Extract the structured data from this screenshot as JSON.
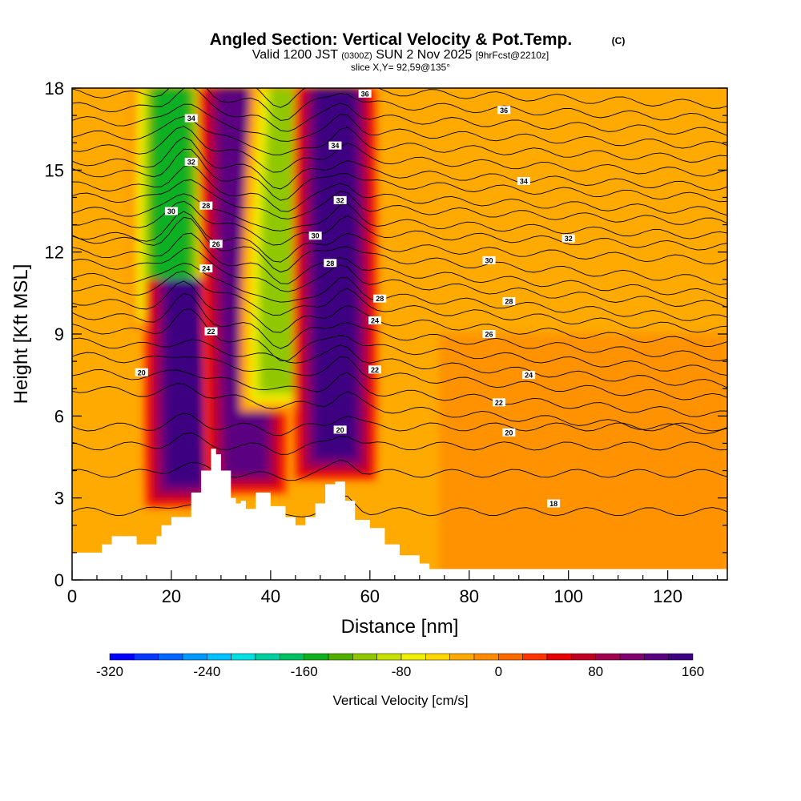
{
  "chart_data": {
    "type": "heatmap",
    "title": "Angled Section: Vertical Velocity & Pot.Temp.",
    "title_suffix": "(C)",
    "subtitle_valid": "Valid 1200 JST",
    "subtitle_zulu": "(0300Z)",
    "subtitle_date": "SUN 2 Nov 2025",
    "subtitle_fcst": "[9hrFcst@2210z]",
    "slice_info": "slice X,Y= 92,59@135°",
    "xlabel": "Distance [nm]",
    "ylabel": "Height [Kft MSL]",
    "xlim": [
      0,
      132
    ],
    "ylim": [
      0,
      18
    ],
    "x_ticks": [
      "0",
      "20",
      "40",
      "60",
      "80",
      "100",
      "120"
    ],
    "x_tick_values": [
      0,
      20,
      40,
      60,
      80,
      100,
      120
    ],
    "y_ticks": [
      "0",
      "3",
      "6",
      "9",
      "12",
      "15",
      "18"
    ],
    "y_tick_values": [
      0,
      3,
      6,
      9,
      12,
      15,
      18
    ],
    "colorbar": {
      "label": "Vertical Velocity [cm/s]",
      "tick_labels": [
        "-320",
        "-240",
        "-160",
        "-80",
        "0",
        "80",
        "160"
      ],
      "range": [
        -320,
        160
      ],
      "step": 20
    },
    "vertical_velocity_features": [
      {
        "name": "downdraft",
        "x": 20,
        "z_min": 9,
        "z_max": 18,
        "value": -160
      },
      {
        "name": "updraft",
        "x": 23,
        "z_min": 2.5,
        "z_max": 11,
        "value": 140
      },
      {
        "name": "updraft",
        "x": 35,
        "z_min": 3,
        "z_max": 18,
        "value": 120
      },
      {
        "name": "downdraft",
        "x": 42,
        "z_min": 6,
        "z_max": 18,
        "value": -120
      },
      {
        "name": "updraft",
        "x": 53,
        "z_min": 3.5,
        "z_max": 18,
        "value": 140
      }
    ],
    "terrain_profile": {
      "x": [
        0,
        5,
        6,
        8,
        12,
        13,
        17,
        18,
        20,
        22,
        24,
        26,
        28,
        29,
        30,
        32,
        33,
        34,
        35,
        37,
        40,
        43,
        45,
        47,
        49,
        51,
        53,
        55,
        57,
        60,
        63,
        66,
        70,
        72,
        132
      ],
      "z": [
        1.0,
        1.0,
        1.3,
        1.6,
        1.6,
        1.3,
        1.6,
        2.0,
        2.3,
        2.3,
        3.2,
        4.0,
        4.8,
        4.6,
        4.0,
        3.0,
        2.8,
        2.9,
        2.6,
        3.2,
        2.7,
        2.3,
        2.0,
        2.3,
        2.8,
        3.5,
        3.6,
        2.9,
        2.2,
        1.9,
        1.3,
        0.9,
        0.6,
        0.4,
        0.4
      ]
    },
    "contour_labels": [
      {
        "text": "36",
        "x": 59,
        "z": 17.8
      },
      {
        "text": "36",
        "x": 87,
        "z": 17.2
      },
      {
        "text": "34",
        "x": 24,
        "z": 16.9
      },
      {
        "text": "34",
        "x": 53,
        "z": 15.9
      },
      {
        "text": "34",
        "x": 91,
        "z": 14.6
      },
      {
        "text": "32",
        "x": 24,
        "z": 15.3
      },
      {
        "text": "32",
        "x": 54,
        "z": 13.9
      },
      {
        "text": "32",
        "x": 100,
        "z": 12.5
      },
      {
        "text": "30",
        "x": 20,
        "z": 13.5
      },
      {
        "text": "30",
        "x": 49,
        "z": 12.6
      },
      {
        "text": "30",
        "x": 84,
        "z": 11.7
      },
      {
        "text": "28",
        "x": 27,
        "z": 13.7
      },
      {
        "text": "28",
        "x": 52,
        "z": 11.6
      },
      {
        "text": "28",
        "x": 88,
        "z": 10.2
      },
      {
        "text": "28",
        "x": 62,
        "z": 10.3
      },
      {
        "text": "26",
        "x": 29,
        "z": 12.3
      },
      {
        "text": "26",
        "x": 84,
        "z": 9.0
      },
      {
        "text": "24",
        "x": 27,
        "z": 11.4
      },
      {
        "text": "24",
        "x": 61,
        "z": 9.5
      },
      {
        "text": "24",
        "x": 92,
        "z": 7.5
      },
      {
        "text": "22",
        "x": 28,
        "z": 9.1
      },
      {
        "text": "22",
        "x": 61,
        "z": 7.7
      },
      {
        "text": "22",
        "x": 86,
        "z": 6.5
      },
      {
        "text": "20",
        "x": 14,
        "z": 7.6
      },
      {
        "text": "20",
        "x": 54,
        "z": 5.5
      },
      {
        "text": "20",
        "x": 88,
        "z": 5.4
      },
      {
        "text": "18",
        "x": 97,
        "z": 2.8
      }
    ]
  },
  "colors": {
    "background_field": "#ffaa00",
    "stable_field": "#ff8c00",
    "colorbar": [
      "#0000ff",
      "#0a37ff",
      "#0066ff",
      "#0099ff",
      "#00c0ff",
      "#00e0e0",
      "#00d0a0",
      "#00c060",
      "#10b020",
      "#50b000",
      "#90c800",
      "#c8e000",
      "#f0f000",
      "#ffd700",
      "#ffaa00",
      "#ff8c00",
      "#ff6a00",
      "#ff3300",
      "#e60000",
      "#c00020",
      "#a00050",
      "#80006f",
      "#5a0080",
      "#3c0080"
    ]
  }
}
